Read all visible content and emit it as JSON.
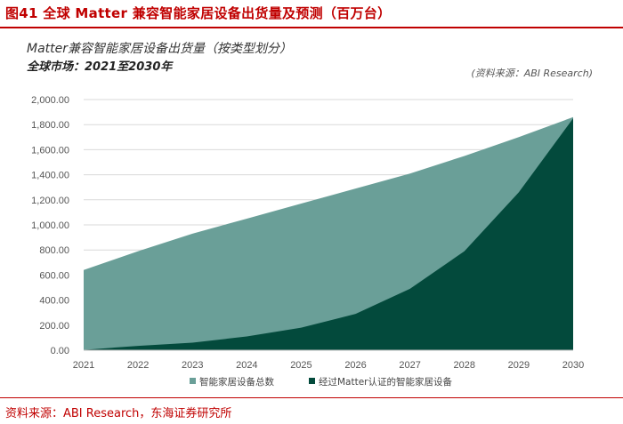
{
  "figure": {
    "title": "图41  全球 Matter 兼容智能家居设备出货量及预测（百万台）",
    "footer_source": "资料来源：ABI Research，东海证券研究所"
  },
  "chart_data": {
    "type": "area",
    "title": "Matter兼容智能家居设备出货量（按类型划分）",
    "subtitle": "全球市场：2021至2030年",
    "source_note": "(资料来源：ABI Research)",
    "categories": [
      "2021",
      "2022",
      "2023",
      "2024",
      "2025",
      "2026",
      "2027",
      "2028",
      "2029",
      "2030"
    ],
    "series": [
      {
        "name": "智能家居设备总数",
        "color": "#6a9f98",
        "values": [
          640,
          790,
          930,
          1050,
          1170,
          1290,
          1410,
          1550,
          1700,
          1860
        ]
      },
      {
        "name": "经过Matter认证的智能家居设备",
        "color": "#034a3c",
        "values": [
          3,
          35,
          60,
          110,
          180,
          290,
          490,
          790,
          1260,
          1850
        ]
      }
    ],
    "ylim": [
      0,
      2000
    ],
    "yticks": [
      0,
      200,
      400,
      600,
      800,
      1000,
      1200,
      1400,
      1600,
      1800,
      2000
    ],
    "ytick_labels": [
      "0.00",
      "200.00",
      "400.00",
      "600.00",
      "800.00",
      "1,000.00",
      "1,200.00",
      "1,400.00",
      "1,600.00",
      "1,800.00",
      "2,000.00"
    ],
    "grid": true,
    "legend": "bottom-center"
  }
}
